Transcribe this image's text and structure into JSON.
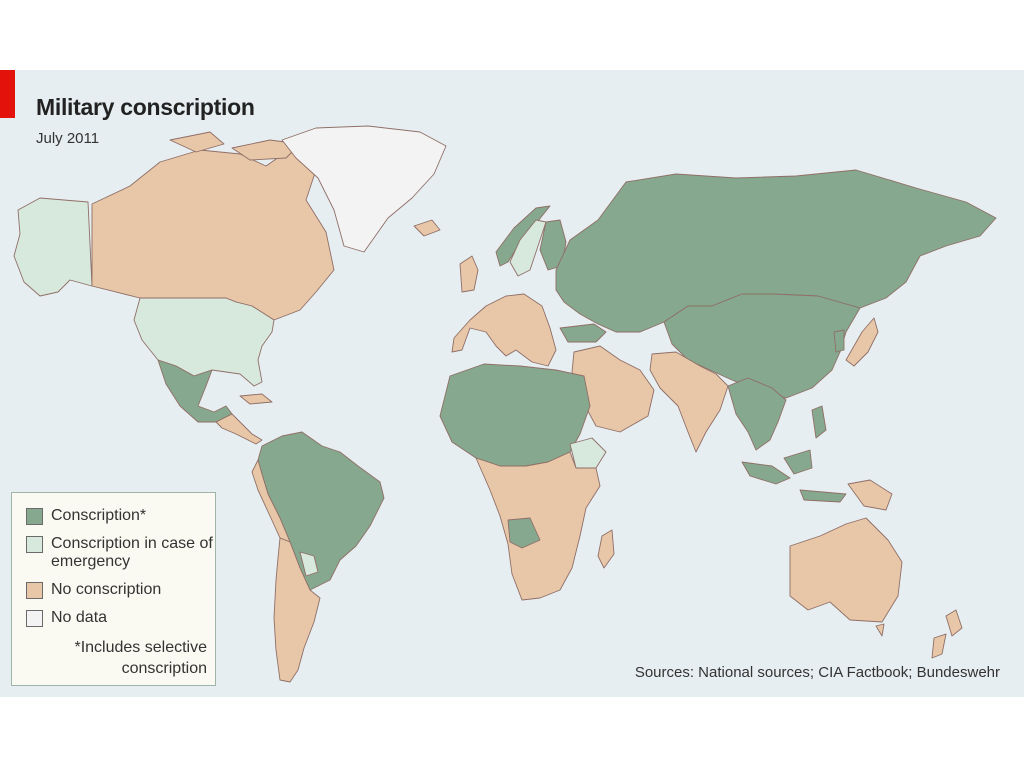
{
  "header": {
    "title": "Military conscription",
    "subtitle": "July 2011"
  },
  "colors": {
    "conscription": "#86a88e",
    "conscription_emergency": "#d7e8dd",
    "no_conscription": "#e8c6a8",
    "no_data": "#f3f3f3",
    "ocean": "#e6eef1",
    "accent": "#e3120b"
  },
  "legend": {
    "items": [
      {
        "label": "Conscription*",
        "category": "conscription"
      },
      {
        "label": "Conscription in case of emergency",
        "category": "conscription_emergency"
      },
      {
        "label": "No conscription",
        "category": "no_conscription"
      },
      {
        "label": "No data",
        "category": "no_data"
      }
    ],
    "note": "*Includes selective conscription"
  },
  "regions": [
    {
      "name": "Alaska",
      "category": "conscription_emergency"
    },
    {
      "name": "Canada",
      "category": "no_conscription"
    },
    {
      "name": "Greenland",
      "category": "no_data"
    },
    {
      "name": "United States",
      "category": "conscription_emergency"
    },
    {
      "name": "Mexico",
      "category": "conscription"
    },
    {
      "name": "Central America",
      "category": "no_conscription"
    },
    {
      "name": "Northern South America",
      "category": "conscription"
    },
    {
      "name": "Peru",
      "category": "no_conscription"
    },
    {
      "name": "Argentina and Chile",
      "category": "no_conscription"
    },
    {
      "name": "Paraguay",
      "category": "conscription_emergency"
    },
    {
      "name": "Western Europe",
      "category": "no_conscription"
    },
    {
      "name": "Norway",
      "category": "conscription"
    },
    {
      "name": "Sweden",
      "category": "conscription_emergency"
    },
    {
      "name": "Finland",
      "category": "conscription"
    },
    {
      "name": "Russia and Central Asia",
      "category": "conscription"
    },
    {
      "name": "China",
      "category": "conscription"
    },
    {
      "name": "Middle East",
      "category": "no_conscription"
    },
    {
      "name": "Turkey",
      "category": "conscription"
    },
    {
      "name": "India",
      "category": "no_conscription"
    },
    {
      "name": "Southeast Asia",
      "category": "conscription"
    },
    {
      "name": "Japan",
      "category": "no_conscription"
    },
    {
      "name": "Indonesia",
      "category": "conscription"
    },
    {
      "name": "North Africa",
      "category": "conscription"
    },
    {
      "name": "Ethiopia",
      "category": "conscription_emergency"
    },
    {
      "name": "Central and Southern Africa",
      "category": "no_conscription"
    },
    {
      "name": "Angola",
      "category": "conscription"
    },
    {
      "name": "Madagascar",
      "category": "no_conscription"
    },
    {
      "name": "Australia",
      "category": "no_conscription"
    },
    {
      "name": "New Zealand",
      "category": "no_conscription"
    }
  ],
  "footer": {
    "sources": "Sources: National sources; CIA Factbook; Bundeswehr"
  }
}
